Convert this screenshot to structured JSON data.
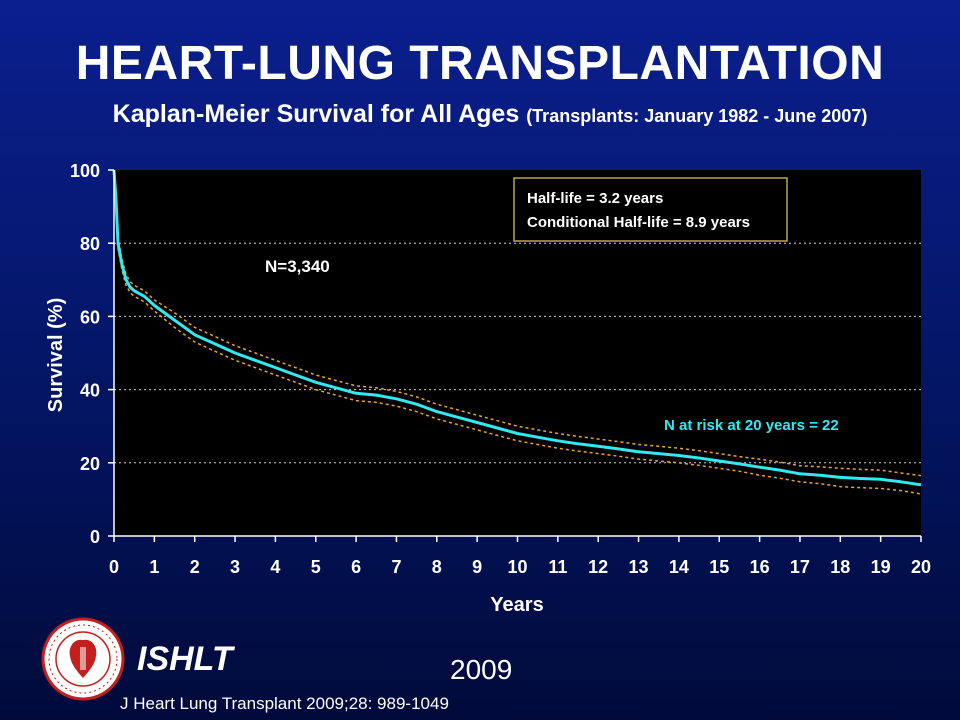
{
  "header": {
    "title": "HEART-LUNG TRANSPLANTATION",
    "subtitle": "Kaplan-Meier Survival for All Ages",
    "subtitle_note": "(Transplants: January 1982 - June 2007)"
  },
  "footer": {
    "citation": "J Heart Lung Transplant 2009;28: 989-1049",
    "org": "ISHLT",
    "year": "2009"
  },
  "colors": {
    "background": "#031563",
    "plot_background": "#000000",
    "survival_line": "#33e8f0",
    "ci_lines": "#e8a33a",
    "grid": "#cfcfcf"
  },
  "chart_data": {
    "type": "line",
    "xlabel": "Years",
    "ylabel": "Survival (%)",
    "xlim": [
      0,
      20
    ],
    "ylim": [
      0,
      100
    ],
    "x_ticks": [
      0,
      1,
      2,
      3,
      4,
      5,
      6,
      7,
      8,
      9,
      10,
      11,
      12,
      13,
      14,
      15,
      16,
      17,
      18,
      19,
      20
    ],
    "y_ticks": [
      0,
      20,
      40,
      60,
      80,
      100
    ],
    "grid": "horizontal dotted",
    "annotations": {
      "n": "N=3,340",
      "half_life_line1": "Half-life = 3.2 years",
      "half_life_line2": "Conditional Half-life = 8.9 years",
      "n_at_risk": "N at risk at 20 years = 22"
    },
    "series": [
      {
        "role": "survival",
        "x": [
          0,
          0.05,
          0.1,
          0.2,
          0.3,
          0.4,
          0.5,
          0.75,
          1,
          1.5,
          2,
          2.5,
          3,
          3.5,
          4,
          4.5,
          5,
          5.5,
          6,
          6.5,
          7,
          7.5,
          8,
          8.5,
          9,
          9.5,
          10,
          10.5,
          11,
          11.5,
          12,
          12.5,
          13,
          13.5,
          14,
          14.5,
          15,
          15.5,
          16,
          16.5,
          17,
          17.5,
          18,
          18.5,
          19,
          19.5,
          20
        ],
        "y": [
          100,
          92,
          80,
          74,
          70,
          68,
          67,
          65.5,
          63,
          59,
          55,
          52.5,
          50,
          48,
          46,
          44,
          42,
          40.5,
          39,
          38.5,
          37.5,
          36,
          34,
          32.5,
          31,
          29.5,
          28,
          27,
          26,
          25.2,
          24.5,
          23.8,
          23,
          22.5,
          22,
          21.3,
          20.5,
          19.7,
          18.8,
          18,
          17,
          16.6,
          16,
          15.7,
          15.5,
          14.8,
          14
        ]
      },
      {
        "role": "upper-ci",
        "x": [
          0,
          0.05,
          0.1,
          0.2,
          0.3,
          0.4,
          0.5,
          0.75,
          1,
          1.5,
          2,
          2.5,
          3,
          3.5,
          4,
          4.5,
          5,
          5.5,
          6,
          6.5,
          7,
          7.5,
          8,
          8.5,
          9,
          9.5,
          10,
          10.5,
          11,
          11.5,
          12,
          12.5,
          13,
          13.5,
          14,
          14.5,
          15,
          15.5,
          16,
          16.5,
          17,
          17.5,
          18,
          18.5,
          19,
          19.5,
          20
        ],
        "y": [
          100,
          93.5,
          81.5,
          75.5,
          71.5,
          69.5,
          68.5,
          67,
          64.5,
          61,
          57,
          54.5,
          52,
          50,
          48,
          46,
          44,
          42.5,
          41,
          40.5,
          39.5,
          38,
          36,
          34.5,
          33,
          31.5,
          30,
          29,
          28,
          27.2,
          26.5,
          25.8,
          25,
          24.5,
          24,
          23.3,
          22.5,
          21.7,
          21,
          20.2,
          19.2,
          18.9,
          18.5,
          18.2,
          18,
          17.2,
          16.5
        ]
      },
      {
        "role": "lower-ci",
        "x": [
          0,
          0.05,
          0.1,
          0.2,
          0.3,
          0.4,
          0.5,
          0.75,
          1,
          1.5,
          2,
          2.5,
          3,
          3.5,
          4,
          4.5,
          5,
          5.5,
          6,
          6.5,
          7,
          7.5,
          8,
          8.5,
          9,
          9.5,
          10,
          10.5,
          11,
          11.5,
          12,
          12.5,
          13,
          13.5,
          14,
          14.5,
          15,
          15.5,
          16,
          16.5,
          17,
          17.5,
          18,
          18.5,
          19,
          19.5,
          20
        ],
        "y": [
          100,
          90.5,
          78.5,
          72.5,
          68.5,
          66.5,
          65.5,
          64,
          61.5,
          57,
          53,
          50.5,
          48,
          46,
          44,
          42,
          40,
          38.5,
          37,
          36.5,
          35.5,
          34,
          32,
          30.5,
          29,
          27.5,
          26,
          25,
          24,
          23.2,
          22.5,
          21.8,
          21,
          20.5,
          20,
          19.3,
          18.5,
          17.7,
          16.6,
          15.8,
          14.8,
          14.3,
          13.5,
          13.2,
          13,
          12.4,
          11.5
        ]
      }
    ]
  }
}
